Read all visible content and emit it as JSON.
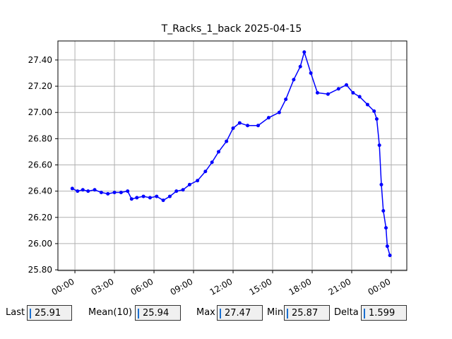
{
  "chart_data": {
    "type": "line",
    "title": "T_Racks_1_back 2025-04-15",
    "x": [
      -0.2,
      0.2,
      0.6,
      1.0,
      1.5,
      2.0,
      2.5,
      3.0,
      3.5,
      4.0,
      4.3,
      4.7,
      5.2,
      5.7,
      6.2,
      6.7,
      7.2,
      7.7,
      8.2,
      8.7,
      9.3,
      9.9,
      10.4,
      10.9,
      11.5,
      12.0,
      12.5,
      13.1,
      13.9,
      14.7,
      15.5,
      16.0,
      16.6,
      17.1,
      17.4,
      17.9,
      18.4,
      19.2,
      20.0,
      20.6,
      21.1,
      21.6,
      22.2,
      22.7,
      22.9,
      23.1,
      23.25,
      23.4,
      23.6,
      23.7,
      23.9
    ],
    "series": [
      {
        "name": "T_Racks_1_back",
        "color": "#0000ff",
        "values": [
          26.42,
          26.4,
          26.41,
          26.4,
          26.41,
          26.39,
          26.38,
          26.39,
          26.39,
          26.4,
          26.34,
          26.35,
          26.36,
          26.35,
          26.36,
          26.33,
          26.36,
          26.4,
          26.41,
          26.45,
          26.48,
          26.55,
          26.62,
          26.7,
          26.78,
          26.88,
          26.92,
          26.9,
          26.9,
          26.96,
          27.0,
          27.1,
          27.25,
          27.35,
          27.46,
          27.3,
          27.15,
          27.14,
          27.18,
          27.21,
          27.15,
          27.12,
          27.06,
          27.01,
          26.95,
          26.75,
          26.45,
          26.25,
          26.12,
          25.98,
          25.91
        ]
      }
    ],
    "xlim": [
      -1.29,
      25.18
    ],
    "xticks": [
      {
        "value": 0,
        "label": "00:00"
      },
      {
        "value": 3,
        "label": "03:00"
      },
      {
        "value": 6,
        "label": "06:00"
      },
      {
        "value": 9,
        "label": "09:00"
      },
      {
        "value": 12,
        "label": "12:00"
      },
      {
        "value": 15,
        "label": "15:00"
      },
      {
        "value": 18,
        "label": "18:00"
      },
      {
        "value": 21,
        "label": "21:00"
      },
      {
        "value": 24,
        "label": "00:00"
      }
    ],
    "ylim": [
      25.795,
      27.545
    ],
    "yticks": [
      {
        "value": 25.8,
        "label": "25.80"
      },
      {
        "value": 26.0,
        "label": "26.00"
      },
      {
        "value": 26.2,
        "label": "26.20"
      },
      {
        "value": 26.4,
        "label": "26.40"
      },
      {
        "value": 26.6,
        "label": "26.60"
      },
      {
        "value": 26.8,
        "label": "26.80"
      },
      {
        "value": 27.0,
        "label": "27.00"
      },
      {
        "value": 27.2,
        "label": "27.20"
      },
      {
        "value": 27.4,
        "label": "27.40"
      }
    ],
    "grid": true
  },
  "stats": [
    {
      "label": "Last",
      "value": 25.91
    },
    {
      "label": "Mean(10)",
      "value": 25.94
    },
    {
      "label": "Max",
      "value": 27.47
    },
    {
      "label": "Min",
      "value": 25.87
    },
    {
      "label": "Delta",
      "value": 1.599
    }
  ]
}
